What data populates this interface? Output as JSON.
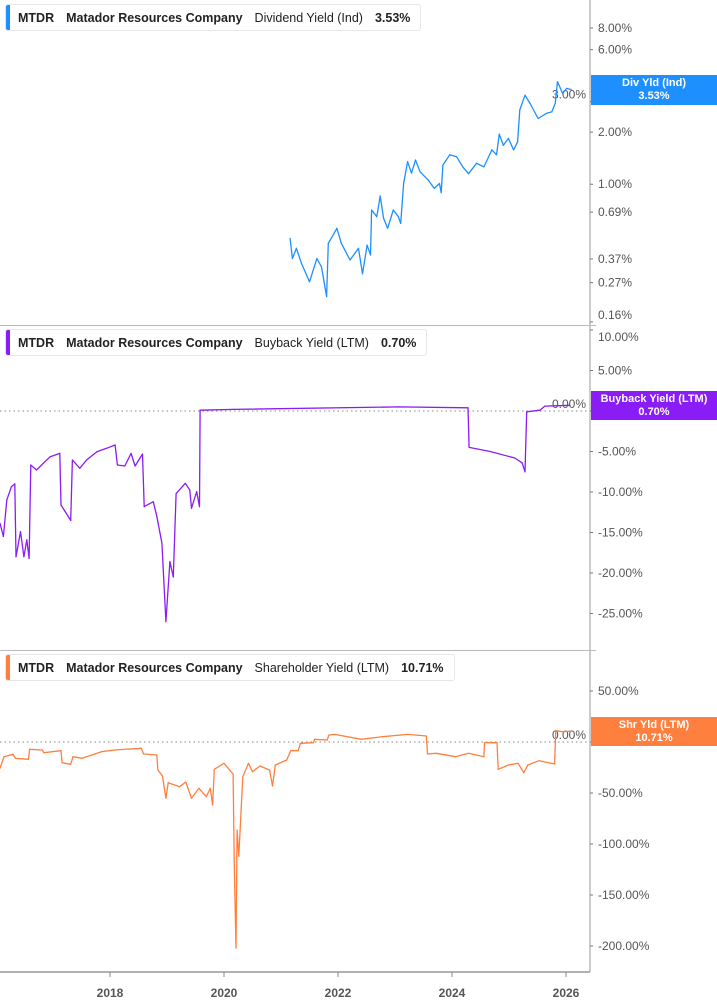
{
  "chart_data": [
    {
      "type": "line",
      "ticker": "MTDR",
      "company": "Matador Resources Company",
      "metric": "Dividend Yield (Ind)",
      "current_value": "3.53%",
      "tag_label": "Div Yld (Ind)",
      "color": "#1E8FFF",
      "y_scale": "log",
      "yticks": [
        "8.00%",
        "6.00%",
        "3.00%",
        "2.00%",
        "1.00%",
        "0.69%",
        "0.37%",
        "0.27%",
        "0.16%"
      ],
      "ytick_values": [
        8,
        6,
        3,
        2,
        1,
        0.69,
        0.37,
        0.27,
        0.16
      ],
      "points": [
        [
          2021.16,
          0.486
        ],
        [
          2021.2,
          0.372
        ],
        [
          2021.27,
          0.426
        ],
        [
          2021.36,
          0.348
        ],
        [
          2021.5,
          0.273
        ],
        [
          2021.63,
          0.372
        ],
        [
          2021.71,
          0.333
        ],
        [
          2021.8,
          0.224
        ],
        [
          2021.83,
          0.455
        ],
        [
          2021.98,
          0.556
        ],
        [
          2022.06,
          0.455
        ],
        [
          2022.21,
          0.365
        ],
        [
          2022.36,
          0.426
        ],
        [
          2022.43,
          0.303
        ],
        [
          2022.51,
          0.445
        ],
        [
          2022.57,
          0.39
        ],
        [
          2022.59,
          0.71
        ],
        [
          2022.68,
          0.649
        ],
        [
          2022.74,
          0.855
        ],
        [
          2022.8,
          0.635
        ],
        [
          2022.87,
          0.556
        ],
        [
          2022.97,
          0.71
        ],
        [
          2023.06,
          0.649
        ],
        [
          2023.1,
          0.594
        ],
        [
          2023.15,
          1.01
        ],
        [
          2023.22,
          1.35
        ],
        [
          2023.29,
          1.16
        ],
        [
          2023.36,
          1.38
        ],
        [
          2023.44,
          1.18
        ],
        [
          2023.58,
          1.06
        ],
        [
          2023.69,
          0.946
        ],
        [
          2023.78,
          1.01
        ],
        [
          2023.81,
          0.893
        ],
        [
          2023.84,
          1.29
        ],
        [
          2023.96,
          1.48
        ],
        [
          2024.08,
          1.44
        ],
        [
          2024.19,
          1.26
        ],
        [
          2024.29,
          1.15
        ],
        [
          2024.43,
          1.32
        ],
        [
          2024.56,
          1.26
        ],
        [
          2024.7,
          1.58
        ],
        [
          2024.78,
          1.48
        ],
        [
          2024.83,
          1.95
        ],
        [
          2024.9,
          1.68
        ],
        [
          2024.99,
          1.84
        ],
        [
          2025.08,
          1.58
        ],
        [
          2025.15,
          1.76
        ],
        [
          2025.19,
          2.69
        ],
        [
          2025.28,
          3.27
        ],
        [
          2025.37,
          2.93
        ],
        [
          2025.51,
          2.4
        ],
        [
          2025.66,
          2.57
        ],
        [
          2025.75,
          2.62
        ],
        [
          2025.81,
          2.93
        ],
        [
          2025.85,
          3.92
        ],
        [
          2025.94,
          3.35
        ],
        [
          2026.01,
          3.58
        ],
        [
          2026.09,
          3.53
        ]
      ]
    },
    {
      "type": "line",
      "ticker": "MTDR",
      "company": "Matador Resources Company",
      "metric": "Buyback Yield (LTM)",
      "current_value": "0.70%",
      "tag_label": "Buyback Yield (LTM)",
      "color": "#8A1CF5",
      "y_scale": "linear",
      "yticks": [
        "10.00%",
        "5.00%",
        "0.00%",
        "-5.00%",
        "-10.00%",
        "-15.00%",
        "-20.00%",
        "-25.00%"
      ],
      "ytick_values": [
        10,
        5,
        0,
        -5,
        -10,
        -15,
        -20,
        -25
      ],
      "zero_line": true,
      "points": [
        [
          2016.07,
          -13.87
        ],
        [
          2016.13,
          -15.5
        ],
        [
          2016.19,
          -11.0
        ],
        [
          2016.27,
          -9.34
        ],
        [
          2016.33,
          -9.0
        ],
        [
          2016.35,
          -18.0
        ],
        [
          2016.43,
          -14.9
        ],
        [
          2016.49,
          -18.0
        ],
        [
          2016.54,
          -15.9
        ],
        [
          2016.58,
          -18.2
        ],
        [
          2016.61,
          -6.67
        ],
        [
          2016.71,
          -7.28
        ],
        [
          2016.83,
          -6.46
        ],
        [
          2016.95,
          -5.64
        ],
        [
          2017.12,
          -5.23
        ],
        [
          2017.14,
          -11.6
        ],
        [
          2017.21,
          -12.4
        ],
        [
          2017.31,
          -13.5
        ],
        [
          2017.34,
          -6.05
        ],
        [
          2017.47,
          -7.08
        ],
        [
          2017.59,
          -6.05
        ],
        [
          2017.77,
          -5.02
        ],
        [
          2017.94,
          -4.61
        ],
        [
          2018.09,
          -4.2
        ],
        [
          2018.13,
          -6.67
        ],
        [
          2018.26,
          -6.79
        ],
        [
          2018.37,
          -5.23
        ],
        [
          2018.44,
          -6.79
        ],
        [
          2018.57,
          -5.31
        ],
        [
          2018.6,
          -11.8
        ],
        [
          2018.76,
          -11.2
        ],
        [
          2018.82,
          -13.0
        ],
        [
          2018.91,
          -16.3
        ],
        [
          2018.98,
          -26.0
        ],
        [
          2019.05,
          -18.6
        ],
        [
          2019.11,
          -20.5
        ],
        [
          2019.16,
          -10.2
        ],
        [
          2019.32,
          -8.93
        ],
        [
          2019.4,
          -9.75
        ],
        [
          2019.43,
          -12.0
        ],
        [
          2019.52,
          -9.96
        ],
        [
          2019.57,
          -11.8
        ],
        [
          2019.58,
          0.1
        ],
        [
          2020.16,
          0.2
        ],
        [
          2023.07,
          0.5
        ],
        [
          2024.28,
          0.4
        ],
        [
          2024.3,
          -4.5
        ],
        [
          2024.67,
          -5.0
        ],
        [
          2025.1,
          -5.8
        ],
        [
          2025.23,
          -6.4
        ],
        [
          2025.28,
          -7.5
        ],
        [
          2025.31,
          -0.1
        ],
        [
          2025.54,
          0.1
        ],
        [
          2025.63,
          0.6
        ],
        [
          2026.07,
          0.7
        ]
      ]
    },
    {
      "type": "line",
      "ticker": "MTDR",
      "company": "Matador Resources Company",
      "metric": "Shareholder Yield (LTM)",
      "current_value": "10.71%",
      "tag_label": "Shr Yld (LTM)",
      "color": "#FF7F3F",
      "y_scale": "linear",
      "yticks": [
        "50.00%",
        "0.00%",
        "-50.00%",
        "-100.00%",
        "-150.00%",
        "-200.00%"
      ],
      "ytick_values": [
        50,
        0,
        -50,
        -100,
        -150,
        -200
      ],
      "zero_line": true,
      "points": [
        [
          2016.07,
          -25.8
        ],
        [
          2016.14,
          -14.4
        ],
        [
          2016.3,
          -12.1
        ],
        [
          2016.34,
          -16.0
        ],
        [
          2016.57,
          -17.0
        ],
        [
          2016.59,
          -7.2
        ],
        [
          2016.81,
          -7.8
        ],
        [
          2016.84,
          -10.5
        ],
        [
          2017.14,
          -8.5
        ],
        [
          2017.16,
          -20.3
        ],
        [
          2017.31,
          -21.9
        ],
        [
          2017.35,
          -14.4
        ],
        [
          2017.51,
          -16.0
        ],
        [
          2017.85,
          -9.5
        ],
        [
          2018.08,
          -7.8
        ],
        [
          2018.55,
          -6.2
        ],
        [
          2018.59,
          -11.8
        ],
        [
          2018.82,
          -12.7
        ],
        [
          2018.84,
          -27.5
        ],
        [
          2018.92,
          -33.3
        ],
        [
          2018.98,
          -55.2
        ],
        [
          2019.02,
          -39.9
        ],
        [
          2019.22,
          -43.8
        ],
        [
          2019.33,
          -39.2
        ],
        [
          2019.43,
          -55.2
        ],
        [
          2019.56,
          -45.4
        ],
        [
          2019.69,
          -53.6
        ],
        [
          2019.76,
          -45.4
        ],
        [
          2019.8,
          -61.8
        ],
        [
          2019.83,
          -26.8
        ],
        [
          2020.0,
          -20.9
        ],
        [
          2020.16,
          -31.4
        ],
        [
          2020.18,
          -122
        ],
        [
          2020.21,
          -202
        ],
        [
          2020.23,
          -86.3
        ],
        [
          2020.26,
          -112
        ],
        [
          2020.33,
          -34.0
        ],
        [
          2020.43,
          -20.9
        ],
        [
          2020.5,
          -29.1
        ],
        [
          2020.63,
          -23.5
        ],
        [
          2020.8,
          -27.5
        ],
        [
          2020.85,
          -43.1
        ],
        [
          2020.9,
          -22.5
        ],
        [
          2021.1,
          -17.6
        ],
        [
          2021.17,
          -8.5
        ],
        [
          2021.3,
          -8.5
        ],
        [
          2021.34,
          -1.3
        ],
        [
          2021.57,
          -0.7
        ],
        [
          2021.59,
          2.6
        ],
        [
          2021.81,
          2.0
        ],
        [
          2021.84,
          6.9
        ],
        [
          2021.94,
          7.5
        ],
        [
          2022.41,
          2.6
        ],
        [
          2022.78,
          5.2
        ],
        [
          2023.22,
          7.5
        ],
        [
          2023.55,
          5.9
        ],
        [
          2023.57,
          -11.8
        ],
        [
          2023.72,
          -11.1
        ],
        [
          2024.06,
          -14.4
        ],
        [
          2024.29,
          -11.1
        ],
        [
          2024.56,
          -14.4
        ],
        [
          2024.57,
          -0.7
        ],
        [
          2024.79,
          -0.7
        ],
        [
          2024.81,
          -26.8
        ],
        [
          2024.99,
          -22.5
        ],
        [
          2025.16,
          -20.9
        ],
        [
          2025.26,
          -30.1
        ],
        [
          2025.33,
          -22.5
        ],
        [
          2025.53,
          -18.3
        ],
        [
          2025.8,
          -21.6
        ],
        [
          2025.82,
          11.1
        ],
        [
          2025.94,
          10.1
        ],
        [
          2026.08,
          10.71
        ]
      ]
    }
  ],
  "x_axis": {
    "ticks": [
      "2018",
      "2020",
      "2022",
      "2024",
      "2026"
    ],
    "tick_values": [
      2018,
      2020,
      2022,
      2024,
      2026
    ]
  }
}
